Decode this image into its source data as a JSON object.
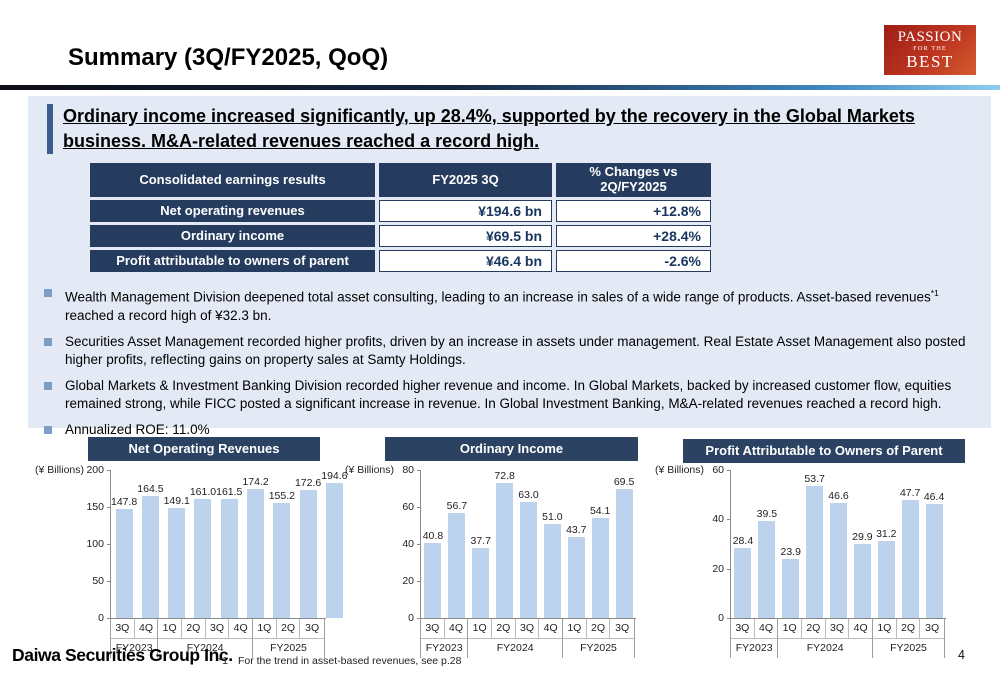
{
  "header": {
    "title": "Summary (3Q/FY2025, QoQ)",
    "logo": {
      "line1": "PASSION",
      "line2": "FOR THE",
      "line3": "BEST"
    }
  },
  "statement": {
    "text": "Ordinary income increased significantly, up 28.4%, supported by the recovery in the Global Markets business. M&A-related revenues reached a record high."
  },
  "table": {
    "headers": [
      "Consolidated earnings results",
      "FY2025 3Q",
      "% Changes vs 2Q/FY2025"
    ],
    "rows": [
      {
        "label": "Net operating revenues",
        "value": "¥194.6 bn",
        "change": "+12.8%"
      },
      {
        "label": "Ordinary income",
        "value": "¥69.5 bn",
        "change": "+28.4%"
      },
      {
        "label": "Profit attributable to owners of parent",
        "value": "¥46.4 bn",
        "change": "-2.6%"
      }
    ]
  },
  "bullets": [
    {
      "pre": "Wealth Management Division deepened total asset consulting, leading to an increase in sales of a wide range of products. Asset-based revenues",
      "sup": "*1",
      "post": " reached a record high of ¥32.3 bn."
    },
    {
      "pre": "Securities Asset Management recorded higher profits, driven by an increase in assets under management. Real Estate Asset Management also posted higher profits, reflecting gains on property sales at Samty Holdings."
    },
    {
      "pre": "Global Markets & Investment Banking Division recorded higher revenue and income. In Global Markets, backed by increased customer flow, equities remained strong, while FICC posted a significant increase in revenue. In Global Investment Banking, M&A-related revenues reached a record high."
    },
    {
      "pre": "Annualized ROE: 11.0%"
    }
  ],
  "chart_data": [
    {
      "type": "bar",
      "title": "Net Operating Revenues",
      "unit": "(¥ Billions)",
      "categories": [
        "3Q",
        "4Q",
        "1Q",
        "2Q",
        "3Q",
        "4Q",
        "1Q",
        "2Q",
        "3Q"
      ],
      "groups": [
        {
          "label": "FY2023",
          "span": 2
        },
        {
          "label": "FY2024",
          "span": 4
        },
        {
          "label": "FY2025",
          "span": 3
        }
      ],
      "values": [
        147.8,
        164.5,
        149.1,
        161.0,
        161.5,
        174.2,
        155.2,
        172.6,
        194.6
      ],
      "ylim": [
        0,
        200
      ],
      "yticks": [
        0,
        50,
        100,
        150,
        200
      ],
      "grid": false,
      "legend": false
    },
    {
      "type": "bar",
      "title": "Ordinary Income",
      "unit": "(¥ Billions)",
      "categories": [
        "3Q",
        "4Q",
        "1Q",
        "2Q",
        "3Q",
        "4Q",
        "1Q",
        "2Q",
        "3Q"
      ],
      "groups": [
        {
          "label": "FY2023",
          "span": 2
        },
        {
          "label": "FY2024",
          "span": 4
        },
        {
          "label": "FY2025",
          "span": 3
        }
      ],
      "values": [
        40.8,
        56.7,
        37.7,
        72.8,
        63.0,
        51.0,
        43.7,
        54.1,
        69.5
      ],
      "ylim": [
        0,
        80
      ],
      "yticks": [
        0,
        20,
        40,
        60,
        80
      ],
      "grid": false,
      "legend": false
    },
    {
      "type": "bar",
      "title": "Profit Attributable to Owners of Parent",
      "unit": "(¥ Billions)",
      "categories": [
        "3Q",
        "4Q",
        "1Q",
        "2Q",
        "3Q",
        "4Q",
        "1Q",
        "2Q",
        "3Q"
      ],
      "groups": [
        {
          "label": "FY2023",
          "span": 2
        },
        {
          "label": "FY2024",
          "span": 4
        },
        {
          "label": "FY2025",
          "span": 3
        }
      ],
      "values": [
        28.4,
        39.5,
        23.9,
        53.7,
        46.6,
        29.9,
        31.2,
        47.7,
        46.4
      ],
      "ylim": [
        0,
        60
      ],
      "yticks": [
        0,
        20,
        40,
        60
      ],
      "grid": false,
      "legend": false
    }
  ],
  "footer": {
    "company": "Daiwa Securities Group Inc.",
    "footnote_marker": "*1",
    "footnote_text": "For the trend in asset-based revenues, see p.28",
    "page_number": "4"
  },
  "colors": {
    "navy": "#263c5f",
    "panel_bg": "#e4eaf5",
    "bar_fill": "#bdd2ec",
    "accent_bar": "#3c5c92",
    "bullet": "#7e9dc9",
    "logo_red": "#bd3520"
  }
}
